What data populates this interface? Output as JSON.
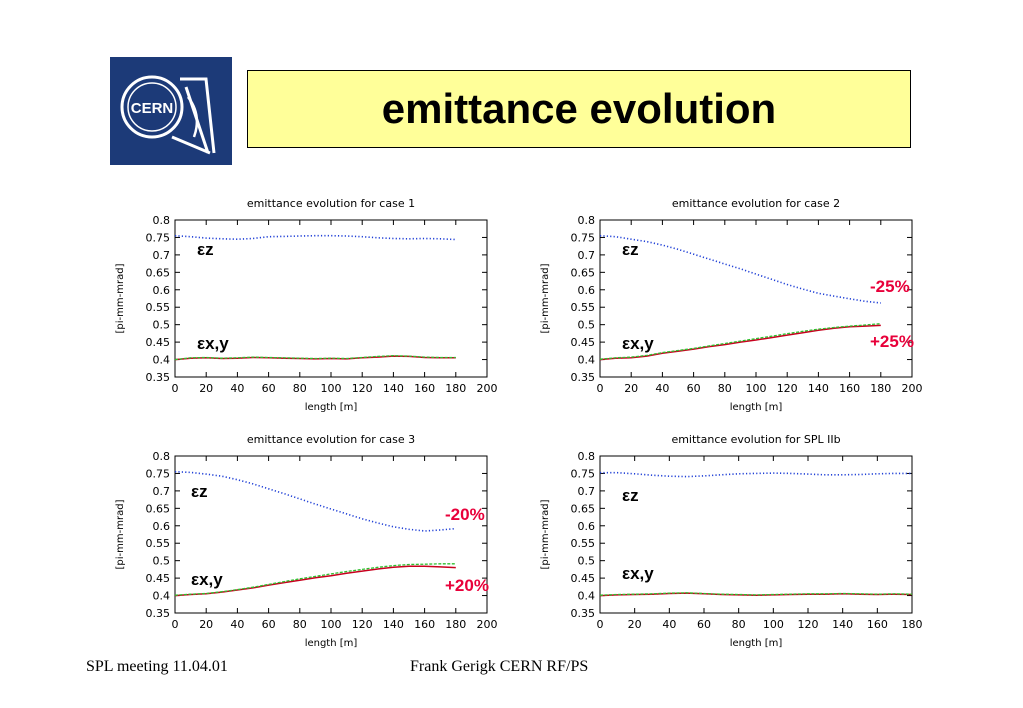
{
  "slide": {
    "title": "emittance evolution"
  },
  "logo": {
    "text": "CERN"
  },
  "footer": {
    "left": "SPL meeting 11.04.01",
    "center": "Frank Gerigk CERN RF/PS"
  },
  "colors": {
    "z": "#1f3fd6",
    "red": "#c8001e",
    "green": "#2ebf2e",
    "annotation": "#e8003a",
    "logo_bg": "#1c3a78",
    "title_bg": "#ffff99"
  },
  "chart_data": [
    {
      "type": "line",
      "title": "emittance evolution for case 1",
      "xlabel": "length [m]",
      "ylabel": "[pi-mm-mrad]",
      "xlim": [
        0,
        200
      ],
      "ylim": [
        0.35,
        0.8
      ],
      "xticks": [
        0,
        20,
        40,
        60,
        80,
        100,
        120,
        140,
        160,
        180,
        200
      ],
      "yticks": [
        0.35,
        0.4,
        0.45,
        0.5,
        0.55,
        0.6,
        0.65,
        0.7,
        0.75,
        0.8
      ],
      "grid": false,
      "x": [
        0,
        10,
        20,
        30,
        40,
        50,
        60,
        70,
        80,
        90,
        100,
        110,
        120,
        130,
        140,
        150,
        160,
        170,
        180
      ],
      "series": [
        {
          "key": "z",
          "style": "dotted",
          "values": [
            0.755,
            0.752,
            0.748,
            0.746,
            0.745,
            0.747,
            0.752,
            0.753,
            0.754,
            0.755,
            0.755,
            0.754,
            0.752,
            0.749,
            0.747,
            0.746,
            0.747,
            0.746,
            0.744
          ]
        },
        {
          "key": "red",
          "style": "solid",
          "values": [
            0.4,
            0.404,
            0.405,
            0.403,
            0.404,
            0.406,
            0.405,
            0.404,
            0.403,
            0.402,
            0.403,
            0.402,
            0.405,
            0.407,
            0.41,
            0.409,
            0.406,
            0.405,
            0.405
          ]
        },
        {
          "key": "green",
          "style": "dashed",
          "values": [
            0.4,
            0.405,
            0.406,
            0.404,
            0.405,
            0.407,
            0.406,
            0.405,
            0.404,
            0.403,
            0.404,
            0.403,
            0.406,
            0.409,
            0.411,
            0.41,
            0.407,
            0.406,
            0.406
          ]
        }
      ],
      "labels": {
        "eps_z": "εz",
        "eps_xy": "εx,y"
      },
      "annotations": []
    },
    {
      "type": "line",
      "title": "emittance evolution for case 2",
      "xlabel": "length [m]",
      "ylabel": "[pi-mm-mrad]",
      "xlim": [
        0,
        200
      ],
      "ylim": [
        0.35,
        0.8
      ],
      "xticks": [
        0,
        20,
        40,
        60,
        80,
        100,
        120,
        140,
        160,
        180,
        200
      ],
      "yticks": [
        0.35,
        0.4,
        0.45,
        0.5,
        0.55,
        0.6,
        0.65,
        0.7,
        0.75,
        0.8
      ],
      "grid": false,
      "x": [
        0,
        10,
        20,
        30,
        40,
        50,
        60,
        70,
        80,
        90,
        100,
        110,
        120,
        130,
        140,
        150,
        160,
        170,
        180
      ],
      "series": [
        {
          "key": "z",
          "style": "dotted",
          "values": [
            0.755,
            0.752,
            0.745,
            0.738,
            0.728,
            0.716,
            0.702,
            0.688,
            0.674,
            0.66,
            0.645,
            0.63,
            0.615,
            0.602,
            0.59,
            0.582,
            0.574,
            0.567,
            0.562
          ]
        },
        {
          "key": "red",
          "style": "solid",
          "values": [
            0.4,
            0.404,
            0.405,
            0.41,
            0.418,
            0.424,
            0.43,
            0.437,
            0.443,
            0.45,
            0.456,
            0.463,
            0.47,
            0.477,
            0.484,
            0.49,
            0.494,
            0.496,
            0.498
          ]
        },
        {
          "key": "green",
          "style": "dashed",
          "values": [
            0.401,
            0.405,
            0.407,
            0.412,
            0.42,
            0.426,
            0.432,
            0.439,
            0.446,
            0.453,
            0.46,
            0.467,
            0.474,
            0.481,
            0.487,
            0.492,
            0.496,
            0.499,
            0.503
          ]
        }
      ],
      "labels": {
        "eps_z": "εz",
        "eps_xy": "εx,y"
      },
      "annotations": [
        "-25%",
        "+25%"
      ]
    },
    {
      "type": "line",
      "title": "emittance evolution for case 3",
      "xlabel": "length [m]",
      "ylabel": "[pi-mm-mrad]",
      "xlim": [
        0,
        200
      ],
      "ylim": [
        0.35,
        0.8
      ],
      "xticks": [
        0,
        20,
        40,
        60,
        80,
        100,
        120,
        140,
        160,
        180,
        200
      ],
      "yticks": [
        0.35,
        0.4,
        0.45,
        0.5,
        0.55,
        0.6,
        0.65,
        0.7,
        0.75,
        0.8
      ],
      "grid": false,
      "x": [
        0,
        10,
        20,
        30,
        40,
        50,
        60,
        70,
        80,
        90,
        100,
        110,
        120,
        130,
        140,
        150,
        160,
        170,
        180
      ],
      "series": [
        {
          "key": "z",
          "style": "dotted",
          "values": [
            0.755,
            0.753,
            0.748,
            0.742,
            0.732,
            0.72,
            0.706,
            0.692,
            0.677,
            0.662,
            0.648,
            0.634,
            0.62,
            0.608,
            0.597,
            0.59,
            0.585,
            0.588,
            0.592
          ]
        },
        {
          "key": "red",
          "style": "solid",
          "values": [
            0.4,
            0.403,
            0.405,
            0.41,
            0.416,
            0.422,
            0.43,
            0.437,
            0.444,
            0.451,
            0.457,
            0.464,
            0.47,
            0.476,
            0.481,
            0.484,
            0.484,
            0.482,
            0.48
          ]
        },
        {
          "key": "green",
          "style": "dashed",
          "values": [
            0.401,
            0.404,
            0.406,
            0.411,
            0.417,
            0.424,
            0.432,
            0.44,
            0.448,
            0.455,
            0.462,
            0.469,
            0.475,
            0.481,
            0.486,
            0.489,
            0.49,
            0.491,
            0.491
          ]
        }
      ],
      "labels": {
        "eps_z": "εz",
        "eps_xy": "εx,y"
      },
      "annotations": [
        "-20%",
        "+20%"
      ]
    },
    {
      "type": "line",
      "title": "emittance evolution for SPL IIb",
      "xlabel": "length [m]",
      "ylabel": "[pi-mm-mrad]",
      "xlim": [
        0,
        180
      ],
      "ylim": [
        0.35,
        0.8
      ],
      "xticks": [
        0,
        20,
        40,
        60,
        80,
        100,
        120,
        140,
        160,
        180
      ],
      "yticks": [
        0.35,
        0.4,
        0.45,
        0.5,
        0.55,
        0.6,
        0.65,
        0.7,
        0.75,
        0.8
      ],
      "grid": false,
      "x": [
        0,
        10,
        20,
        30,
        40,
        50,
        60,
        70,
        80,
        90,
        100,
        110,
        120,
        130,
        140,
        150,
        160,
        170,
        180
      ],
      "series": [
        {
          "key": "z",
          "style": "dotted",
          "values": [
            0.752,
            0.752,
            0.749,
            0.745,
            0.742,
            0.741,
            0.743,
            0.746,
            0.749,
            0.75,
            0.751,
            0.75,
            0.748,
            0.746,
            0.746,
            0.747,
            0.749,
            0.75,
            0.75
          ]
        },
        {
          "key": "red",
          "style": "solid",
          "values": [
            0.4,
            0.402,
            0.403,
            0.404,
            0.406,
            0.407,
            0.405,
            0.403,
            0.402,
            0.401,
            0.402,
            0.403,
            0.404,
            0.404,
            0.405,
            0.404,
            0.403,
            0.404,
            0.403
          ]
        },
        {
          "key": "green",
          "style": "dashed",
          "values": [
            0.401,
            0.403,
            0.404,
            0.405,
            0.407,
            0.408,
            0.406,
            0.404,
            0.403,
            0.402,
            0.403,
            0.404,
            0.405,
            0.405,
            0.406,
            0.405,
            0.404,
            0.405,
            0.404
          ]
        }
      ],
      "labels": {
        "eps_z": "εz",
        "eps_xy": "εx,y"
      },
      "annotations": []
    }
  ]
}
